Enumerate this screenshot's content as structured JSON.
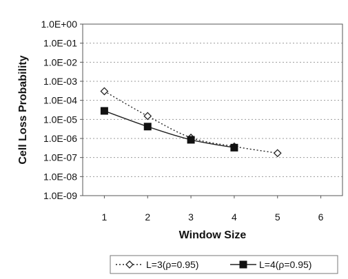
{
  "chart_data": {
    "type": "line",
    "title": "",
    "xlabel": "Window Size",
    "ylabel": "Cell Loss Probability",
    "x_ticks": [
      "1",
      "2",
      "3",
      "4",
      "5",
      "6"
    ],
    "y_ticks": [
      "1.0E+00",
      "1.0E-01",
      "1.0E-02",
      "1.0E-03",
      "1.0E-04",
      "1.0E-05",
      "1.0E-06",
      "1.0E-07",
      "1.0E-08",
      "1.0E-09"
    ],
    "xlim": [
      0.5,
      6.5
    ],
    "ylim": [
      1e-09,
      1
    ],
    "yscale": "log",
    "grid": "horizontal dotted",
    "legend_position": "bottom",
    "series": [
      {
        "name": "L=3(ρ=0.95)",
        "marker": "diamond-open",
        "line_style": "dotted",
        "x": [
          1,
          2,
          3,
          4,
          5
        ],
        "y": [
          0.0003,
          1.5e-05,
          1.1e-06,
          3.8e-07,
          1.7e-07
        ]
      },
      {
        "name": "L=4(ρ=0.95)",
        "marker": "square-filled",
        "line_style": "solid",
        "x": [
          1,
          2,
          3,
          4
        ],
        "y": [
          2.8e-05,
          4.2e-06,
          8.5e-07,
          3.3e-07
        ]
      }
    ]
  }
}
